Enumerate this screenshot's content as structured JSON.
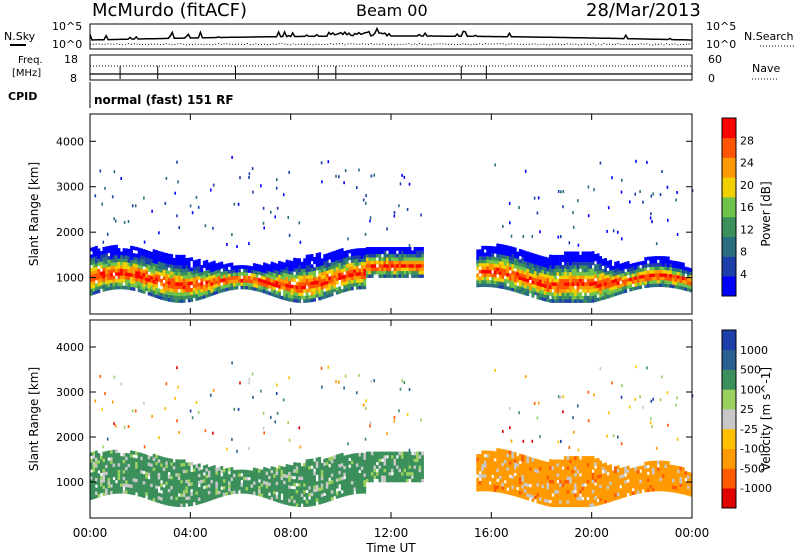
{
  "header": {
    "station": "McMurdo (fitACF)",
    "beam": "Beam 00",
    "date": "28/Mar/2013",
    "cpid_label": "CPID",
    "cpid_value": "normal (fast) 151 RF"
  },
  "top_panels": {
    "nsky_label": "N.Sky",
    "nsearch_label": "N.Search",
    "noise_top_tick": "10^5",
    "noise_bottom_tick": "10^0",
    "freq_label_line1": "Freq.",
    "freq_label_line2": "[MHz]",
    "nave_label": "Nave",
    "freq_ticks": [
      "18",
      "8"
    ],
    "nave_ticks": [
      "60",
      "0"
    ]
  },
  "colors": {
    "power_scale": [
      "#0000ff",
      "#1e3faa",
      "#2a6f80",
      "#3b8f5a",
      "#6fc24a",
      "#f0d000",
      "#ff9900",
      "#ff5500",
      "#ff0000"
    ],
    "velocity_scale": [
      "#e00000",
      "#ff5a00",
      "#ff9a00",
      "#ffc000",
      "#c8c8c8",
      "#9ad060",
      "#3b8f5a",
      "#2a6090",
      "#1e3faa"
    ]
  },
  "chart_data": [
    {
      "type": "heatmap",
      "panel": "power",
      "ylabel": "Slant Range [km]",
      "y_ticks": [
        1000,
        2000,
        3000,
        4000
      ],
      "ylim": [
        200,
        4600
      ],
      "colorbar_label": "Power [dB]",
      "colorbar_ticks": [
        "28",
        "24",
        "20",
        "16",
        "12",
        "8",
        "4"
      ]
    },
    {
      "type": "heatmap",
      "panel": "velocity",
      "ylabel": "Slant Range [km]",
      "y_ticks": [
        1000,
        2000,
        3000,
        4000
      ],
      "ylim": [
        200,
        4600
      ],
      "colorbar_label": "Velocity [m s^-1]",
      "colorbar_ticks": [
        "1000",
        "500",
        "100",
        "25",
        "-25",
        "-100",
        "-500",
        "-1000"
      ]
    }
  ],
  "x_axis": {
    "label": "Time UT",
    "ticks": [
      "00:00",
      "04:00",
      "08:00",
      "12:00",
      "16:00",
      "20:00",
      "00:00"
    ]
  }
}
